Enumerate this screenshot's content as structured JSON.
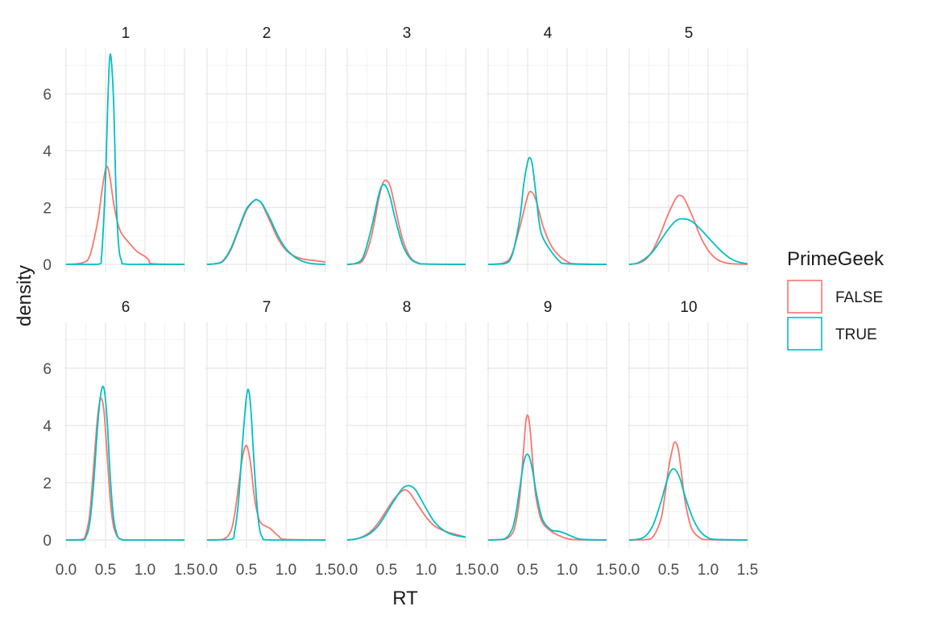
{
  "chart_data": {
    "type": "line",
    "facet_variable": "Subject",
    "xlabel": "RT",
    "ylabel": "density",
    "xlim": [
      0,
      1.5
    ],
    "ylim": [
      0,
      7.6
    ],
    "x_ticks": [
      0.0,
      0.5,
      1.0,
      1.5
    ],
    "x_tick_labels": [
      "0.0",
      "0.5",
      "1.0",
      "1.5"
    ],
    "y_ticks": [
      0,
      2,
      4,
      6
    ],
    "y_tick_labels": [
      "0",
      "2",
      "4",
      "6"
    ],
    "grid": true,
    "legend": {
      "title": "PrimeGeek",
      "position": "right",
      "entries": [
        {
          "label": "FALSE",
          "color": "#F8766D"
        },
        {
          "label": "TRUE",
          "color": "#00BFC4"
        }
      ]
    },
    "panels": [
      {
        "label": "1",
        "series": [
          {
            "name": "FALSE",
            "x": [
              0.0,
              0.2,
              0.3,
              0.4,
              0.45,
              0.5,
              0.53,
              0.56,
              0.6,
              0.65,
              0.7,
              0.8,
              0.9,
              1.0,
              1.05,
              1.1,
              1.5
            ],
            "y": [
              0,
              0.05,
              0.3,
              1.5,
              2.5,
              3.35,
              3.4,
              3.0,
              2.2,
              1.5,
              1.1,
              0.75,
              0.45,
              0.28,
              0.15,
              0.02,
              0
            ]
          },
          {
            "name": "TRUE",
            "x": [
              0.0,
              0.4,
              0.45,
              0.5,
              0.53,
              0.56,
              0.6,
              0.63,
              0.66,
              0.7,
              0.8,
              1.5
            ],
            "y": [
              0,
              0,
              0.3,
              3.0,
              5.8,
              7.4,
              5.9,
              2.8,
              0.9,
              0.15,
              0,
              0
            ]
          }
        ]
      },
      {
        "label": "2",
        "series": [
          {
            "name": "FALSE",
            "x": [
              0.0,
              0.1,
              0.2,
              0.3,
              0.4,
              0.5,
              0.6,
              0.65,
              0.7,
              0.8,
              0.9,
              1.0,
              1.1,
              1.2,
              1.3,
              1.4,
              1.5
            ],
            "y": [
              0,
              0.02,
              0.1,
              0.5,
              1.2,
              1.9,
              2.25,
              2.25,
              2.1,
              1.5,
              0.9,
              0.5,
              0.3,
              0.2,
              0.15,
              0.12,
              0.08
            ]
          },
          {
            "name": "TRUE",
            "x": [
              0.0,
              0.1,
              0.2,
              0.3,
              0.4,
              0.5,
              0.6,
              0.65,
              0.7,
              0.8,
              0.9,
              1.0,
              1.1,
              1.2,
              1.3,
              1.4,
              1.5
            ],
            "y": [
              0,
              0.02,
              0.12,
              0.55,
              1.25,
              1.95,
              2.25,
              2.25,
              2.12,
              1.6,
              1.0,
              0.55,
              0.28,
              0.12,
              0.04,
              0.01,
              0
            ]
          }
        ]
      },
      {
        "label": "3",
        "series": [
          {
            "name": "FALSE",
            "x": [
              0.0,
              0.1,
              0.2,
              0.3,
              0.4,
              0.45,
              0.5,
              0.55,
              0.6,
              0.7,
              0.8,
              0.9,
              1.0,
              1.5
            ],
            "y": [
              0,
              0.02,
              0.15,
              0.9,
              2.3,
              2.85,
              2.95,
              2.7,
              2.1,
              0.9,
              0.25,
              0.05,
              0.01,
              0
            ]
          },
          {
            "name": "TRUE",
            "x": [
              0.0,
              0.1,
              0.2,
              0.3,
              0.4,
              0.45,
              0.5,
              0.55,
              0.6,
              0.7,
              0.8,
              0.9,
              1.0,
              1.5
            ],
            "y": [
              0,
              0.03,
              0.25,
              1.2,
              2.45,
              2.8,
              2.7,
              2.3,
              1.7,
              0.7,
              0.2,
              0.04,
              0.01,
              0
            ]
          }
        ]
      },
      {
        "label": "4",
        "series": [
          {
            "name": "FALSE",
            "x": [
              0.0,
              0.2,
              0.3,
              0.4,
              0.5,
              0.55,
              0.6,
              0.65,
              0.7,
              0.8,
              0.9,
              1.0,
              1.1,
              1.5
            ],
            "y": [
              0,
              0.05,
              0.35,
              1.3,
              2.4,
              2.55,
              2.3,
              1.8,
              1.3,
              0.65,
              0.3,
              0.1,
              0.02,
              0
            ]
          },
          {
            "name": "TRUE",
            "x": [
              0.0,
              0.2,
              0.3,
              0.4,
              0.45,
              0.5,
              0.53,
              0.56,
              0.6,
              0.65,
              0.7,
              0.8,
              0.9,
              1.0,
              1.5
            ],
            "y": [
              0,
              0.02,
              0.3,
              1.6,
              2.8,
              3.6,
              3.75,
              3.5,
              2.6,
              1.4,
              0.9,
              0.45,
              0.12,
              0.02,
              0
            ]
          }
        ]
      },
      {
        "label": "5",
        "series": [
          {
            "name": "FALSE",
            "x": [
              0.0,
              0.1,
              0.2,
              0.3,
              0.4,
              0.5,
              0.6,
              0.65,
              0.7,
              0.8,
              0.9,
              1.0,
              1.1,
              1.2,
              1.3,
              1.5
            ],
            "y": [
              0,
              0.03,
              0.15,
              0.5,
              1.1,
              1.8,
              2.35,
              2.42,
              2.3,
              1.7,
              1.0,
              0.5,
              0.2,
              0.07,
              0.02,
              0
            ]
          },
          {
            "name": "TRUE",
            "x": [
              0.0,
              0.1,
              0.2,
              0.3,
              0.4,
              0.5,
              0.6,
              0.7,
              0.8,
              0.9,
              1.0,
              1.1,
              1.2,
              1.3,
              1.4,
              1.5
            ],
            "y": [
              0,
              0.04,
              0.2,
              0.45,
              0.85,
              1.25,
              1.55,
              1.6,
              1.5,
              1.25,
              0.95,
              0.65,
              0.38,
              0.18,
              0.07,
              0.02
            ]
          }
        ]
      },
      {
        "label": "6",
        "series": [
          {
            "name": "FALSE",
            "x": [
              0.0,
              0.2,
              0.25,
              0.3,
              0.35,
              0.4,
              0.44,
              0.48,
              0.52,
              0.56,
              0.6,
              0.65,
              0.7,
              0.8,
              1.5
            ],
            "y": [
              0,
              0.02,
              0.2,
              0.9,
              2.6,
              4.3,
              4.95,
              4.5,
              3.0,
              1.4,
              0.5,
              0.12,
              0.03,
              0,
              0
            ]
          },
          {
            "name": "TRUE",
            "x": [
              0.0,
              0.2,
              0.25,
              0.3,
              0.35,
              0.4,
              0.44,
              0.48,
              0.52,
              0.56,
              0.6,
              0.65,
              0.7,
              0.8,
              1.5
            ],
            "y": [
              0,
              0,
              0.1,
              0.6,
              2.0,
              4.0,
              5.1,
              5.3,
              4.2,
              2.2,
              0.8,
              0.15,
              0.02,
              0,
              0
            ]
          }
        ]
      },
      {
        "label": "7",
        "series": [
          {
            "name": "FALSE",
            "x": [
              0.0,
              0.2,
              0.3,
              0.35,
              0.4,
              0.45,
              0.5,
              0.55,
              0.6,
              0.65,
              0.7,
              0.8,
              0.9,
              1.0,
              1.5
            ],
            "y": [
              0,
              0.02,
              0.3,
              0.9,
              1.9,
              2.9,
              3.3,
              2.7,
              1.5,
              0.8,
              0.55,
              0.4,
              0.15,
              0.02,
              0
            ]
          },
          {
            "name": "TRUE",
            "x": [
              0.0,
              0.3,
              0.35,
              0.4,
              0.45,
              0.5,
              0.53,
              0.56,
              0.6,
              0.65,
              0.7,
              0.8,
              1.5
            ],
            "y": [
              0,
              0.02,
              0.3,
              1.4,
              3.4,
              5.0,
              5.2,
              4.4,
              2.5,
              0.7,
              0.1,
              0,
              0
            ]
          }
        ]
      },
      {
        "label": "8",
        "series": [
          {
            "name": "FALSE",
            "x": [
              0.0,
              0.1,
              0.2,
              0.3,
              0.4,
              0.5,
              0.6,
              0.7,
              0.75,
              0.8,
              0.9,
              1.0,
              1.1,
              1.2,
              1.3,
              1.4,
              1.5
            ],
            "y": [
              0,
              0.03,
              0.12,
              0.3,
              0.62,
              1.05,
              1.45,
              1.72,
              1.74,
              1.62,
              1.2,
              0.8,
              0.5,
              0.35,
              0.25,
              0.18,
              0.1
            ]
          },
          {
            "name": "TRUE",
            "x": [
              0.0,
              0.1,
              0.2,
              0.3,
              0.4,
              0.5,
              0.6,
              0.7,
              0.78,
              0.85,
              0.9,
              1.0,
              1.1,
              1.2,
              1.3,
              1.4,
              1.5
            ],
            "y": [
              0,
              0.03,
              0.1,
              0.25,
              0.52,
              0.95,
              1.4,
              1.8,
              1.9,
              1.8,
              1.6,
              1.1,
              0.65,
              0.38,
              0.22,
              0.14,
              0.1
            ]
          }
        ]
      },
      {
        "label": "9",
        "series": [
          {
            "name": "FALSE",
            "x": [
              0.0,
              0.2,
              0.3,
              0.35,
              0.4,
              0.45,
              0.48,
              0.51,
              0.54,
              0.57,
              0.6,
              0.65,
              0.7,
              0.8,
              0.9,
              1.0,
              1.1,
              1.5
            ],
            "y": [
              0,
              0.02,
              0.2,
              0.6,
              1.5,
              3.2,
              4.2,
              4.3,
              3.6,
              2.5,
              1.6,
              0.9,
              0.55,
              0.3,
              0.15,
              0.05,
              0.01,
              0
            ]
          },
          {
            "name": "TRUE",
            "x": [
              0.0,
              0.2,
              0.3,
              0.35,
              0.4,
              0.45,
              0.5,
              0.55,
              0.6,
              0.65,
              0.7,
              0.8,
              0.9,
              1.0,
              1.1,
              1.2,
              1.5
            ],
            "y": [
              0,
              0.03,
              0.35,
              0.9,
              1.8,
              2.7,
              3.0,
              2.6,
              1.8,
              1.1,
              0.65,
              0.35,
              0.3,
              0.2,
              0.08,
              0.02,
              0
            ]
          }
        ]
      },
      {
        "label": "10",
        "series": [
          {
            "name": "FALSE",
            "x": [
              0.0,
              0.2,
              0.3,
              0.4,
              0.45,
              0.5,
              0.55,
              0.58,
              0.62,
              0.66,
              0.7,
              0.75,
              0.8,
              0.9,
              1.0,
              1.5
            ],
            "y": [
              0,
              0.01,
              0.1,
              0.7,
              1.5,
              2.5,
              3.2,
              3.42,
              3.2,
              2.4,
              1.5,
              0.8,
              0.35,
              0.07,
              0.01,
              0
            ]
          },
          {
            "name": "TRUE",
            "x": [
              0.0,
              0.1,
              0.2,
              0.3,
              0.4,
              0.45,
              0.5,
              0.55,
              0.6,
              0.65,
              0.7,
              0.8,
              0.9,
              1.0,
              1.1,
              1.5
            ],
            "y": [
              0,
              0.02,
              0.12,
              0.5,
              1.3,
              1.8,
              2.25,
              2.48,
              2.4,
              2.1,
              1.6,
              0.8,
              0.3,
              0.08,
              0.02,
              0
            ]
          }
        ]
      }
    ]
  }
}
